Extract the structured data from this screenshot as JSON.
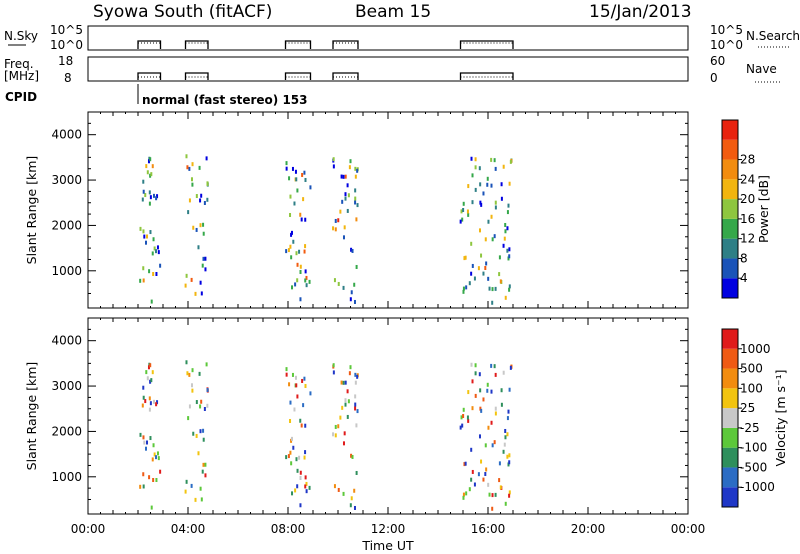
{
  "header": {
    "title": "Syowa South (fitACF)",
    "beam": "Beam 15",
    "date": "15/Jan/2013"
  },
  "noise_panel": {
    "left_label": "N.Sky",
    "right_label": "N.Search",
    "left_ticks": [
      "10^5",
      "10^0"
    ],
    "right_ticks": [
      "10^5",
      "10^0"
    ]
  },
  "freq_panel": {
    "left_label_1": "Freq.",
    "left_label_2": "[MHz]",
    "right_label": "Nave",
    "left_ticks": [
      "18",
      "8"
    ],
    "right_ticks": [
      "60",
      "0"
    ]
  },
  "cpid": {
    "label": "CPID",
    "text": "normal (fast stereo) 153",
    "start_hour": 2
  },
  "power_colorbar": {
    "title": "Power [dB]",
    "ticks": [
      "4",
      "8",
      "12",
      "16",
      "20",
      "24",
      "28"
    ],
    "colors": [
      "#0000e0",
      "#1a53b8",
      "#2e7f86",
      "#35a84a",
      "#8ec63f",
      "#f2b50f",
      "#f28c0f",
      "#f25b0f",
      "#e8220e"
    ]
  },
  "velocity_colorbar": {
    "title": "Velocity [m s⁻¹]",
    "ticks": [
      "1000",
      "500",
      "100",
      "25",
      "-25",
      "-100",
      "-500",
      "-1000"
    ],
    "colors": [
      "#1f37c7",
      "#2b6cc4",
      "#2e8f5c",
      "#5cc83a",
      "#c8c8c8",
      "#f2c40f",
      "#f28c0f",
      "#ef5a14",
      "#e01b1b"
    ]
  },
  "chart_data": [
    {
      "type": "scatter",
      "name": "power",
      "ylabel": "Slant Range [km]",
      "xlim": [
        0,
        24
      ],
      "ylim": [
        180,
        4500
      ],
      "yticks": [
        "1000",
        "2000",
        "3000",
        "4000"
      ],
      "data_windows_hours": [
        [
          2.0,
          2.9
        ],
        [
          3.9,
          4.8
        ],
        [
          7.9,
          8.9
        ],
        [
          9.8,
          10.8
        ],
        [
          14.9,
          17.0
        ]
      ],
      "color_scale": "power",
      "note_density": "scattered ionospheric backscatter echoes between ~300 and ~3500 km"
    },
    {
      "type": "scatter",
      "name": "velocity",
      "ylabel": "Slant Range [km]",
      "xlabel": "Time UT",
      "xlim": [
        0,
        24
      ],
      "ylim": [
        180,
        4500
      ],
      "xticks": [
        "00:00",
        "04:00",
        "08:00",
        "12:00",
        "16:00",
        "20:00",
        "00:00"
      ],
      "yticks": [
        "1000",
        "2000",
        "3000",
        "4000"
      ],
      "data_windows_hours": [
        [
          2.0,
          2.9
        ],
        [
          3.9,
          4.8
        ],
        [
          7.9,
          8.9
        ],
        [
          9.8,
          10.8
        ],
        [
          14.9,
          17.0
        ]
      ],
      "color_scale": "velocity"
    }
  ]
}
